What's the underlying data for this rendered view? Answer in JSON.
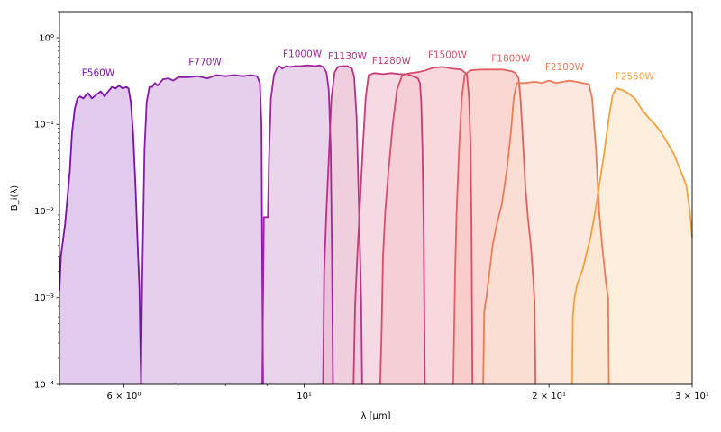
{
  "chart_data": {
    "type": "area",
    "title": "",
    "xlabel": "λ [μm]",
    "ylabel": "B_i(λ)",
    "xscale": "log",
    "yscale": "log",
    "xlim": [
      5.0,
      30.0
    ],
    "ylim": [
      0.0001,
      2.0
    ],
    "grid": false,
    "legend": "none",
    "x_ticks": [
      {
        "value": 6,
        "label": "6 × 10⁰"
      },
      {
        "value": 10,
        "label": "10¹"
      },
      {
        "value": 20,
        "label": "2 × 10¹"
      },
      {
        "value": 30,
        "label": "3 × 10¹"
      }
    ],
    "y_ticks": [
      {
        "value": 0.0001,
        "label": "10⁻⁴"
      },
      {
        "value": 0.001,
        "label": "10⁻³"
      },
      {
        "value": 0.01,
        "label": "10⁻²"
      },
      {
        "value": 0.1,
        "label": "10⁻¹"
      },
      {
        "value": 1,
        "label": "10⁰"
      }
    ],
    "series": [
      {
        "name": "F560W",
        "color": "#7b0fad",
        "fill": "#d7b8e6",
        "label_at": [
          5.58,
          0.36
        ],
        "points": [
          [
            5.0,
            0.0012
          ],
          [
            5.02,
            0.003
          ],
          [
            5.08,
            0.007
          ],
          [
            5.15,
            0.03
          ],
          [
            5.18,
            0.08
          ],
          [
            5.22,
            0.15
          ],
          [
            5.26,
            0.2
          ],
          [
            5.3,
            0.21
          ],
          [
            5.35,
            0.2
          ],
          [
            5.42,
            0.23
          ],
          [
            5.48,
            0.2
          ],
          [
            5.55,
            0.22
          ],
          [
            5.62,
            0.24
          ],
          [
            5.68,
            0.21
          ],
          [
            5.74,
            0.24
          ],
          [
            5.8,
            0.27
          ],
          [
            5.86,
            0.26
          ],
          [
            5.92,
            0.28
          ],
          [
            5.98,
            0.26
          ],
          [
            6.04,
            0.27
          ],
          [
            6.08,
            0.26
          ],
          [
            6.12,
            0.18
          ],
          [
            6.16,
            0.08
          ],
          [
            6.2,
            0.02
          ],
          [
            6.24,
            0.004
          ],
          [
            6.27,
            0.0013
          ],
          [
            6.3,
            0.0001
          ]
        ]
      },
      {
        "name": "F770W",
        "color": "#8a1aa8",
        "fill": "#dcbfe5",
        "label_at": [
          7.55,
          0.48
        ],
        "points": [
          [
            6.3,
            0.0001
          ],
          [
            6.32,
            0.0015
          ],
          [
            6.36,
            0.05
          ],
          [
            6.4,
            0.18
          ],
          [
            6.45,
            0.27
          ],
          [
            6.5,
            0.27
          ],
          [
            6.55,
            0.3
          ],
          [
            6.6,
            0.28
          ],
          [
            6.7,
            0.33
          ],
          [
            6.8,
            0.34
          ],
          [
            6.9,
            0.32
          ],
          [
            7.0,
            0.35
          ],
          [
            7.2,
            0.35
          ],
          [
            7.4,
            0.36
          ],
          [
            7.6,
            0.34
          ],
          [
            7.8,
            0.37
          ],
          [
            8.0,
            0.36
          ],
          [
            8.2,
            0.37
          ],
          [
            8.4,
            0.36
          ],
          [
            8.6,
            0.37
          ],
          [
            8.75,
            0.36
          ],
          [
            8.82,
            0.3
          ],
          [
            8.86,
            0.1
          ],
          [
            8.88,
            0.002
          ],
          [
            8.9,
            0.0001
          ]
        ]
      },
      {
        "name": "F1000W",
        "color": "#a0259e",
        "fill": "#e2c6e5",
        "label_at": [
          9.95,
          0.6
        ],
        "points": [
          [
            8.88,
            0.0001
          ],
          [
            8.9,
            0.001
          ],
          [
            8.92,
            0.0085
          ],
          [
            9.02,
            0.0085
          ],
          [
            9.05,
            0.04
          ],
          [
            9.1,
            0.2
          ],
          [
            9.18,
            0.37
          ],
          [
            9.25,
            0.44
          ],
          [
            9.32,
            0.47
          ],
          [
            9.4,
            0.44
          ],
          [
            9.5,
            0.47
          ],
          [
            9.6,
            0.46
          ],
          [
            9.75,
            0.47
          ],
          [
            9.9,
            0.47
          ],
          [
            10.1,
            0.48
          ],
          [
            10.3,
            0.47
          ],
          [
            10.45,
            0.48
          ],
          [
            10.55,
            0.46
          ],
          [
            10.65,
            0.4
          ],
          [
            10.72,
            0.25
          ],
          [
            10.78,
            0.05
          ],
          [
            10.82,
            0.003
          ],
          [
            10.85,
            0.0001
          ]
        ]
      },
      {
        "name": "F1130W",
        "color": "#b82f8c",
        "fill": "#e9bdd2",
        "label_at": [
          11.3,
          0.56
        ],
        "points": [
          [
            10.55,
            0.0001
          ],
          [
            10.58,
            0.002
          ],
          [
            10.65,
            0.01
          ],
          [
            10.72,
            0.04
          ],
          [
            10.8,
            0.2
          ],
          [
            10.9,
            0.4
          ],
          [
            11.0,
            0.46
          ],
          [
            11.15,
            0.47
          ],
          [
            11.3,
            0.47
          ],
          [
            11.45,
            0.44
          ],
          [
            11.52,
            0.35
          ],
          [
            11.6,
            0.12
          ],
          [
            11.68,
            0.01
          ],
          [
            11.75,
            0.0009
          ],
          [
            11.78,
            0.0001
          ]
        ]
      },
      {
        "name": "F1280W",
        "color": "#c83a78",
        "fill": "#f1cedb",
        "label_at": [
          12.8,
          0.5
        ],
        "points": [
          [
            11.5,
            0.0001
          ],
          [
            11.55,
            0.0008
          ],
          [
            11.62,
            0.003
          ],
          [
            11.7,
            0.01
          ],
          [
            11.8,
            0.05
          ],
          [
            11.9,
            0.2
          ],
          [
            12.0,
            0.37
          ],
          [
            12.2,
            0.39
          ],
          [
            12.5,
            0.38
          ],
          [
            12.8,
            0.39
          ],
          [
            13.1,
            0.38
          ],
          [
            13.4,
            0.38
          ],
          [
            13.6,
            0.36
          ],
          [
            13.8,
            0.34
          ],
          [
            13.88,
            0.3
          ],
          [
            13.93,
            0.18
          ],
          [
            13.98,
            0.05
          ],
          [
            14.03,
            0.005
          ],
          [
            14.07,
            0.0001
          ]
        ]
      },
      {
        "name": "F1500W",
        "color": "#d84d6a",
        "fill": "#f6cbd1",
        "label_at": [
          15.0,
          0.58
        ],
        "points": [
          [
            12.4,
            0.0001
          ],
          [
            12.45,
            0.0004
          ],
          [
            12.5,
            0.003
          ],
          [
            12.58,
            0.01
          ],
          [
            12.7,
            0.03
          ],
          [
            12.85,
            0.1
          ],
          [
            13.0,
            0.25
          ],
          [
            13.2,
            0.37
          ],
          [
            13.5,
            0.39
          ],
          [
            13.8,
            0.4
          ],
          [
            14.1,
            0.42
          ],
          [
            14.4,
            0.45
          ],
          [
            14.8,
            0.46
          ],
          [
            15.2,
            0.44
          ],
          [
            15.6,
            0.43
          ],
          [
            15.85,
            0.38
          ],
          [
            15.95,
            0.2
          ],
          [
            16.02,
            0.05
          ],
          [
            16.06,
            0.006
          ],
          [
            16.1,
            0.0001
          ]
        ]
      },
      {
        "name": "F1800W",
        "color": "#e2605e",
        "fill": "#f8c9c4",
        "label_at": [
          17.95,
          0.53
        ],
        "points": [
          [
            15.25,
            0.0001
          ],
          [
            15.28,
            0.0003
          ],
          [
            15.33,
            0.002
          ],
          [
            15.4,
            0.01
          ],
          [
            15.5,
            0.05
          ],
          [
            15.62,
            0.2
          ],
          [
            15.75,
            0.37
          ],
          [
            16.0,
            0.42
          ],
          [
            16.5,
            0.43
          ],
          [
            17.0,
            0.43
          ],
          [
            17.5,
            0.43
          ],
          [
            18.0,
            0.41
          ],
          [
            18.2,
            0.39
          ],
          [
            18.35,
            0.34
          ],
          [
            18.45,
            0.2
          ],
          [
            18.55,
            0.08
          ],
          [
            18.7,
            0.02
          ],
          [
            18.85,
            0.008
          ],
          [
            19.0,
            0.004
          ],
          [
            19.1,
            0.002
          ],
          [
            19.2,
            0.0009
          ],
          [
            19.25,
            0.0001
          ]
        ]
      },
      {
        "name": "F2100W",
        "color": "#ec7b55",
        "fill": "#fbe0d3",
        "label_at": [
          20.9,
          0.42
        ],
        "points": [
          [
            16.6,
            0.0001
          ],
          [
            16.65,
            0.0007
          ],
          [
            16.75,
            0.001
          ],
          [
            16.9,
            0.002
          ],
          [
            17.05,
            0.004
          ],
          [
            17.25,
            0.007
          ],
          [
            17.5,
            0.012
          ],
          [
            17.75,
            0.03
          ],
          [
            17.95,
            0.08
          ],
          [
            18.1,
            0.2
          ],
          [
            18.25,
            0.3
          ],
          [
            18.7,
            0.3
          ],
          [
            19.2,
            0.31
          ],
          [
            19.6,
            0.3
          ],
          [
            20.0,
            0.32
          ],
          [
            20.4,
            0.3
          ],
          [
            20.8,
            0.31
          ],
          [
            21.2,
            0.32
          ],
          [
            21.6,
            0.31
          ],
          [
            22.0,
            0.3
          ],
          [
            22.4,
            0.29
          ],
          [
            22.6,
            0.2
          ],
          [
            22.85,
            0.05
          ],
          [
            23.05,
            0.01
          ],
          [
            23.25,
            0.004
          ],
          [
            23.5,
            0.0015
          ],
          [
            23.65,
            0.001
          ],
          [
            23.7,
            0.0001
          ]
        ]
      },
      {
        "name": "F2550W",
        "color": "#f5a03a",
        "fill": "#fde8d2",
        "label_at": [
          25.5,
          0.33
        ],
        "points": [
          [
            21.35,
            0.0001
          ],
          [
            21.4,
            0.0006
          ],
          [
            21.5,
            0.001
          ],
          [
            21.65,
            0.0014
          ],
          [
            21.85,
            0.0018
          ],
          [
            22.0,
            0.0021
          ],
          [
            22.2,
            0.003
          ],
          [
            22.5,
            0.005
          ],
          [
            22.8,
            0.01
          ],
          [
            23.1,
            0.022
          ],
          [
            23.4,
            0.05
          ],
          [
            23.7,
            0.12
          ],
          [
            23.95,
            0.22
          ],
          [
            24.2,
            0.26
          ],
          [
            24.6,
            0.25
          ],
          [
            25.0,
            0.23
          ],
          [
            25.5,
            0.2
          ],
          [
            26.0,
            0.15
          ],
          [
            26.5,
            0.12
          ],
          [
            27.0,
            0.1
          ],
          [
            27.5,
            0.08
          ],
          [
            28.0,
            0.06
          ],
          [
            28.5,
            0.045
          ],
          [
            29.0,
            0.03
          ],
          [
            29.5,
            0.02
          ],
          [
            29.8,
            0.01
          ],
          [
            30.0,
            0.005
          ]
        ]
      }
    ]
  }
}
